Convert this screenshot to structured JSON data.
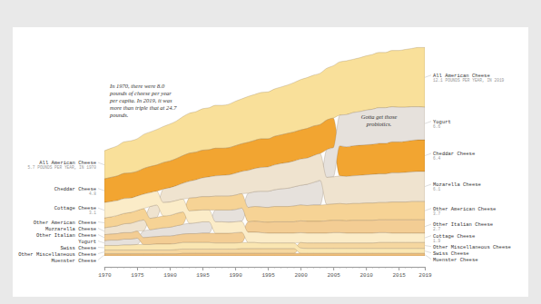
{
  "chart_data": {
    "type": "area",
    "stacked": true,
    "data_labels": true,
    "tick_labels": "x",
    "x": [
      1970,
      1971,
      1972,
      1973,
      1974,
      1975,
      1976,
      1977,
      1978,
      1979,
      1980,
      1981,
      1982,
      1983,
      1984,
      1985,
      1986,
      1987,
      1988,
      1989,
      1990,
      1991,
      1992,
      1993,
      1994,
      1995,
      1996,
      1997,
      1998,
      1999,
      2000,
      2001,
      2002,
      2003,
      2004,
      2005,
      2006,
      2007,
      2008,
      2009,
      2010,
      2011,
      2012,
      2013,
      2014,
      2015,
      2016,
      2017,
      2018,
      2019
    ],
    "xlim": [
      1970,
      2019
    ],
    "xticks": [
      1970,
      1975,
      1980,
      1985,
      1990,
      1995,
      2000,
      2005,
      2010,
      2015,
      2019
    ],
    "ylim": [
      0,
      43
    ],
    "annotations": [
      {
        "lines": [
          "In 1970, there were 8.0",
          "pounds of cheese per year",
          "per capita. In 2019, it was",
          "more than triple that at 24.7",
          "pounds."
        ]
      },
      {
        "lines": [
          "Gotta get those",
          "probiotics."
        ]
      }
    ],
    "series": [
      {
        "name": "All American Cheese",
        "color": "#f9e09a",
        "values": [
          5.7,
          5.9,
          6.1,
          6.4,
          6.5,
          6.6,
          6.9,
          7.0,
          7.2,
          7.3,
          7.5,
          7.6,
          7.9,
          8.1,
          8.2,
          8.4,
          8.5,
          8.7,
          8.7,
          8.8,
          9.0,
          9.1,
          9.3,
          9.3,
          9.4,
          9.5,
          9.6,
          9.7,
          9.8,
          10.0,
          10.2,
          10.3,
          10.3,
          10.4,
          10.5,
          10.6,
          10.8,
          10.9,
          10.8,
          10.9,
          11.0,
          11.1,
          11.2,
          11.2,
          11.4,
          11.5,
          11.7,
          11.8,
          12.0,
          12.1
        ],
        "value_labels": [
          "5.7 POUNDS PER YEAR, IN 1970",
          null,
          null,
          null,
          null,
          null,
          null,
          null,
          null,
          null,
          null,
          null,
          null,
          null,
          null,
          null,
          null,
          null,
          null,
          null,
          null,
          null,
          null,
          null,
          null,
          null,
          null,
          null,
          null,
          null,
          null,
          null,
          null,
          null,
          null,
          null,
          null,
          null,
          null,
          null,
          null,
          null,
          null,
          null,
          null,
          null,
          null,
          null,
          null,
          "12.1 POUNDS PER YEAR, IN 2019"
        ]
      },
      {
        "name": "Cheddar Cheese",
        "color": "#f2a531",
        "values": [
          4.8,
          4.9,
          5.0,
          5.1,
          5.1,
          5.0,
          5.2,
          5.3,
          5.3,
          5.4,
          5.4,
          5.5,
          5.6,
          5.7,
          5.6,
          5.6,
          5.5,
          5.6,
          5.5,
          5.5,
          5.6,
          5.6,
          5.7,
          5.7,
          5.8,
          5.7,
          5.8,
          5.8,
          5.9,
          5.9,
          5.9,
          6.0,
          6.0,
          5.9,
          6.0,
          6.0,
          6.1,
          6.0,
          6.1,
          6.1,
          6.1,
          6.1,
          6.2,
          6.2,
          6.3,
          6.3,
          6.3,
          6.4,
          6.4,
          6.4
        ],
        "value_labels": [
          "4.8",
          null,
          null,
          null,
          null,
          null,
          null,
          null,
          null,
          null,
          null,
          null,
          null,
          null,
          null,
          null,
          null,
          null,
          null,
          null,
          null,
          null,
          null,
          null,
          null,
          null,
          null,
          null,
          null,
          null,
          null,
          null,
          null,
          null,
          null,
          null,
          null,
          null,
          null,
          null,
          null,
          null,
          null,
          null,
          null,
          null,
          null,
          null,
          null,
          "6.4"
        ]
      },
      {
        "name": "Yogurt",
        "color": "#e6e1dc",
        "values": [
          1.0,
          1.1,
          1.1,
          1.2,
          1.2,
          1.3,
          1.4,
          1.5,
          1.6,
          1.7,
          1.8,
          1.9,
          2.0,
          2.1,
          2.2,
          2.3,
          2.3,
          2.4,
          2.4,
          2.5,
          2.5,
          2.7,
          2.9,
          3.0,
          3.2,
          3.3,
          3.4,
          3.6,
          3.7,
          3.9,
          4.0,
          4.3,
          4.6,
          5.0,
          5.6,
          5.9,
          6.2,
          6.5,
          6.7,
          6.8,
          7.0,
          7.1,
          7.2,
          7.2,
          7.1,
          7.0,
          6.9,
          6.8,
          6.7,
          6.6
        ],
        "value_labels": [
          null,
          null,
          null,
          null,
          null,
          null,
          null,
          null,
          null,
          null,
          null,
          null,
          null,
          null,
          null,
          null,
          null,
          null,
          null,
          null,
          null,
          null,
          null,
          null,
          null,
          null,
          null,
          null,
          null,
          null,
          null,
          null,
          null,
          null,
          null,
          null,
          null,
          null,
          null,
          null,
          null,
          null,
          null,
          null,
          null,
          null,
          null,
          null,
          null,
          "6.6"
        ]
      },
      {
        "name": "Mozzarella Cheese",
        "name_end": "Mozarella Cheese",
        "color": "#efe3cf",
        "values": [
          1.4,
          1.5,
          1.6,
          1.8,
          1.9,
          2.0,
          2.2,
          2.4,
          2.5,
          2.7,
          2.9,
          3.0,
          3.2,
          3.4,
          3.6,
          3.8,
          4.0,
          4.1,
          4.2,
          4.3,
          4.4,
          4.5,
          4.6,
          4.7,
          4.8,
          4.9,
          5.0,
          5.1,
          5.2,
          5.2,
          5.3,
          5.3,
          5.4,
          5.4,
          5.5,
          5.5,
          5.6,
          5.6,
          5.6,
          5.7,
          5.7,
          5.8,
          5.8,
          5.8,
          5.9,
          5.9,
          6.0,
          6.0,
          6.1,
          6.1
        ],
        "value_labels": [
          null,
          null,
          null,
          null,
          null,
          null,
          null,
          null,
          null,
          null,
          null,
          null,
          null,
          null,
          null,
          null,
          null,
          null,
          null,
          null,
          null,
          null,
          null,
          null,
          null,
          null,
          null,
          null,
          null,
          null,
          null,
          null,
          null,
          null,
          null,
          null,
          null,
          null,
          null,
          null,
          null,
          null,
          null,
          null,
          null,
          null,
          null,
          null,
          null,
          "6.1"
        ]
      },
      {
        "name": "Other American Cheese",
        "color": "#f6d395",
        "values": [
          2.0,
          2.0,
          2.1,
          2.1,
          2.2,
          2.2,
          2.3,
          2.3,
          2.3,
          2.4,
          2.4,
          2.5,
          2.5,
          2.6,
          2.6,
          2.7,
          2.7,
          2.8,
          2.8,
          2.8,
          2.9,
          2.9,
          2.9,
          3.0,
          3.0,
          3.0,
          3.1,
          3.1,
          3.1,
          3.2,
          3.2,
          3.2,
          3.3,
          3.3,
          3.3,
          3.3,
          3.4,
          3.4,
          3.4,
          3.4,
          3.5,
          3.5,
          3.5,
          3.5,
          3.6,
          3.6,
          3.6,
          3.7,
          3.7,
          3.7
        ],
        "value_labels": [
          null,
          null,
          null,
          null,
          null,
          null,
          null,
          null,
          null,
          null,
          null,
          null,
          null,
          null,
          null,
          null,
          null,
          null,
          null,
          null,
          null,
          null,
          null,
          null,
          null,
          null,
          null,
          null,
          null,
          null,
          null,
          null,
          null,
          null,
          null,
          null,
          null,
          null,
          null,
          null,
          null,
          null,
          null,
          null,
          null,
          null,
          null,
          null,
          null,
          "3.7"
        ]
      },
      {
        "name": "Other Italian Cheese",
        "color": "#f3cd94",
        "values": [
          1.2,
          1.2,
          1.3,
          1.3,
          1.3,
          1.4,
          1.4,
          1.5,
          1.5,
          1.6,
          1.6,
          1.7,
          1.7,
          1.8,
          1.8,
          1.9,
          1.9,
          2.0,
          2.0,
          2.0,
          2.1,
          2.1,
          2.1,
          2.2,
          2.2,
          2.2,
          2.3,
          2.3,
          2.3,
          2.3,
          2.4,
          2.4,
          2.4,
          2.4,
          2.5,
          2.5,
          2.5,
          2.5,
          2.6,
          2.6,
          2.6,
          2.6,
          2.6,
          2.6,
          2.7,
          2.7,
          2.7,
          2.7,
          2.7,
          2.7
        ],
        "value_labels": [
          null,
          null,
          null,
          null,
          null,
          null,
          null,
          null,
          null,
          null,
          null,
          null,
          null,
          null,
          null,
          null,
          null,
          null,
          null,
          null,
          null,
          null,
          null,
          null,
          null,
          null,
          null,
          null,
          null,
          null,
          null,
          null,
          null,
          null,
          null,
          null,
          null,
          null,
          null,
          null,
          null,
          null,
          null,
          null,
          null,
          null,
          null,
          null,
          null,
          "2.7"
        ]
      },
      {
        "name": "Cottage Cheese",
        "color": "#fbecc8",
        "values": [
          3.1,
          3.1,
          3.0,
          3.0,
          2.9,
          2.9,
          2.9,
          2.8,
          2.8,
          2.7,
          2.7,
          2.6,
          2.6,
          2.5,
          2.5,
          2.4,
          2.4,
          2.3,
          2.3,
          2.2,
          2.2,
          2.2,
          2.1,
          2.1,
          2.1,
          2.0,
          2.0,
          2.0,
          2.0,
          2.0,
          2.0,
          2.0,
          2.0,
          2.0,
          2.0,
          2.1,
          2.1,
          2.0,
          2.0,
          2.0,
          2.0,
          2.0,
          2.0,
          2.0,
          1.9,
          1.9,
          1.9,
          1.9,
          1.9,
          1.9
        ],
        "value_labels": [
          "3.1",
          null,
          null,
          null,
          null,
          null,
          null,
          null,
          null,
          null,
          null,
          null,
          null,
          null,
          null,
          null,
          null,
          null,
          null,
          null,
          null,
          null,
          null,
          null,
          null,
          null,
          null,
          null,
          null,
          null,
          null,
          null,
          null,
          null,
          null,
          null,
          null,
          null,
          null,
          null,
          null,
          null,
          null,
          null,
          null,
          null,
          null,
          null,
          null,
          "1.9"
        ]
      },
      {
        "name": "Other Miscellaneous Cheese",
        "color": "#f5d7a0",
        "values": [
          0.8,
          0.8,
          0.8,
          0.8,
          0.8,
          0.8,
          0.8,
          0.8,
          0.8,
          0.8,
          0.8,
          0.9,
          0.9,
          0.9,
          0.9,
          0.9,
          0.9,
          0.9,
          0.9,
          0.9,
          0.9,
          1.0,
          1.0,
          1.0,
          1.0,
          1.0,
          1.0,
          1.0,
          1.0,
          1.0,
          1.1,
          1.1,
          1.1,
          1.1,
          1.1,
          1.1,
          1.1,
          1.1,
          1.1,
          1.1,
          1.1,
          1.1,
          1.2,
          1.2,
          1.2,
          1.2,
          1.2,
          1.2,
          1.2,
          1.2
        ]
      },
      {
        "name": "Swiss Cheese",
        "color": "#fae6b2",
        "values": [
          0.9,
          0.9,
          0.9,
          1.0,
          1.0,
          1.1,
          1.1,
          1.1,
          1.2,
          1.2,
          1.2,
          1.2,
          1.3,
          1.3,
          1.3,
          1.3,
          1.3,
          1.2,
          1.2,
          1.2,
          1.2,
          1.2,
          1.2,
          1.2,
          1.1,
          1.1,
          1.1,
          1.1,
          1.1,
          1.1,
          1.1,
          1.0,
          1.0,
          1.0,
          1.0,
          1.0,
          1.0,
          1.0,
          1.0,
          1.0,
          1.0,
          1.0,
          1.0,
          1.0,
          1.0,
          1.0,
          1.0,
          1.0,
          1.0,
          1.0
        ]
      },
      {
        "name": "Muenster Cheese",
        "color": "#efbe78",
        "values": [
          0.4,
          0.4,
          0.4,
          0.4,
          0.4,
          0.4,
          0.4,
          0.4,
          0.4,
          0.4,
          0.4,
          0.4,
          0.5,
          0.5,
          0.5,
          0.5,
          0.5,
          0.5,
          0.5,
          0.5,
          0.5,
          0.5,
          0.5,
          0.5,
          0.5,
          0.5,
          0.5,
          0.5,
          0.5,
          0.5,
          0.5,
          0.5,
          0.5,
          0.5,
          0.5,
          0.5,
          0.5,
          0.5,
          0.5,
          0.5,
          0.5,
          0.5,
          0.5,
          0.5,
          0.5,
          0.5,
          0.5,
          0.5,
          0.5,
          0.5
        ]
      }
    ]
  }
}
